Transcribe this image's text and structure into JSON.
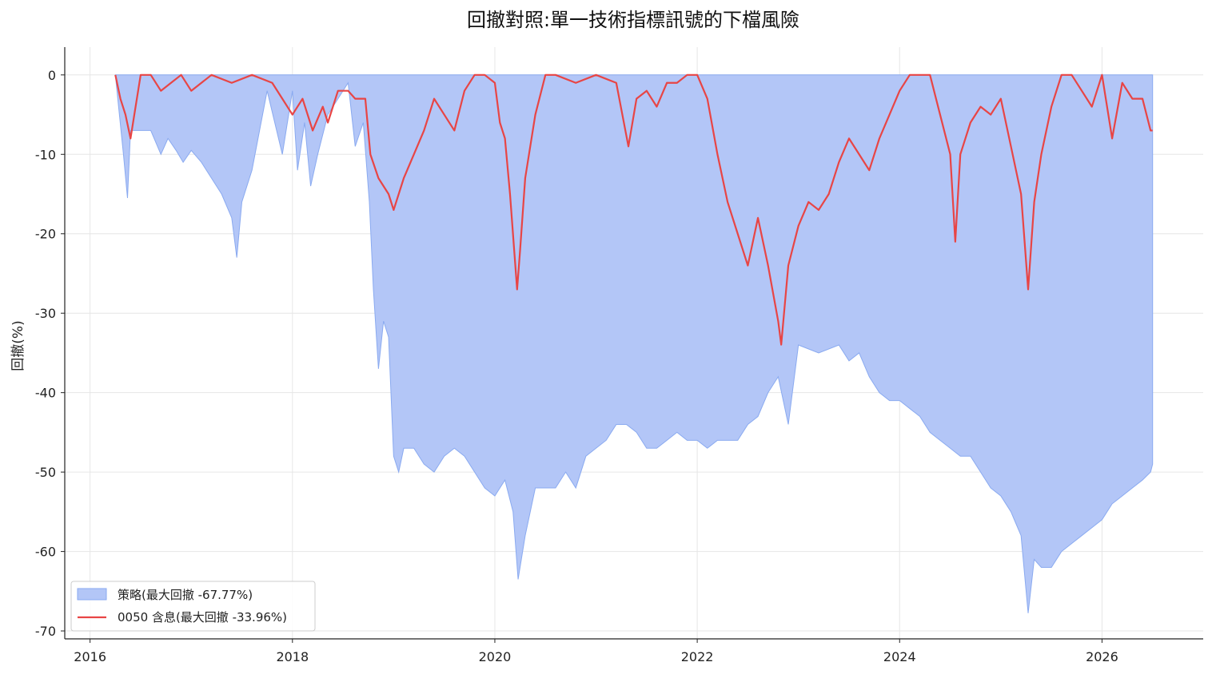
{
  "chart_data": {
    "type": "area",
    "title": "回撤對照:單一技術指標訊號的下檔風險",
    "xlabel": "",
    "ylabel": "回撤(%)",
    "xlim": [
      2015.75,
      2027.0
    ],
    "ylim": [
      -71,
      3.5
    ],
    "x_ticks": [
      2016,
      2018,
      2020,
      2022,
      2024,
      2026
    ],
    "x_tick_labels": [
      "2016",
      "2018",
      "2020",
      "2022",
      "2024",
      "2026"
    ],
    "y_ticks": [
      0,
      -10,
      -20,
      -30,
      -40,
      -50,
      -60,
      -70
    ],
    "y_tick_labels": [
      "0",
      "-10",
      "-20",
      "-30",
      "-40",
      "-50",
      "-60",
      "-70"
    ],
    "grid": true,
    "legend_position": "lower-left",
    "colors": {
      "strategy_fill": "#b3c6f7",
      "strategy_edge": "#8aaaf0",
      "benchmark": "#e84545"
    },
    "series": [
      {
        "name": "策略(最大回撤 -67.77%)",
        "kind": "area",
        "x": [
          2016.25,
          2016.29,
          2016.33,
          2016.37,
          2016.4,
          2016.5,
          2016.6,
          2016.7,
          2016.77,
          2016.85,
          2016.92,
          2017.0,
          2017.1,
          2017.2,
          2017.3,
          2017.4,
          2017.45,
          2017.5,
          2017.6,
          2017.75,
          2017.9,
          2018.0,
          2018.05,
          2018.12,
          2018.18,
          2018.25,
          2018.35,
          2018.45,
          2018.55,
          2018.62,
          2018.7,
          2018.76,
          2018.8,
          2018.85,
          2018.9,
          2018.95,
          2019.0,
          2019.05,
          2019.1,
          2019.2,
          2019.3,
          2019.4,
          2019.5,
          2019.6,
          2019.7,
          2019.8,
          2019.9,
          2020.0,
          2020.1,
          2020.18,
          2020.23,
          2020.3,
          2020.4,
          2020.5,
          2020.6,
          2020.7,
          2020.8,
          2020.9,
          2021.0,
          2021.1,
          2021.2,
          2021.3,
          2021.4,
          2021.5,
          2021.6,
          2021.7,
          2021.8,
          2021.9,
          2022.0,
          2022.1,
          2022.2,
          2022.3,
          2022.4,
          2022.5,
          2022.6,
          2022.7,
          2022.8,
          2022.9,
          2023.0,
          2023.2,
          2023.4,
          2023.5,
          2023.6,
          2023.7,
          2023.8,
          2023.9,
          2024.0,
          2024.1,
          2024.2,
          2024.3,
          2024.4,
          2024.5,
          2024.6,
          2024.7,
          2024.8,
          2024.9,
          2025.0,
          2025.1,
          2025.2,
          2025.27,
          2025.33,
          2025.4,
          2025.5,
          2025.6,
          2025.7,
          2025.8,
          2025.9,
          2026.0,
          2026.1,
          2026.2,
          2026.3,
          2026.4,
          2026.48,
          2026.5
        ],
        "y": [
          0,
          -5,
          -10,
          -15.5,
          -7,
          -7,
          -7,
          -10,
          -8,
          -9.5,
          -11,
          -9.5,
          -11,
          -13,
          -15,
          -18,
          -23,
          -16,
          -12,
          -2,
          -10,
          -2,
          -12,
          -6,
          -14,
          -10,
          -5,
          -3,
          -1,
          -9,
          -6,
          -16,
          -27,
          -37,
          -31,
          -33,
          -48,
          -50,
          -47,
          -47,
          -49,
          -50,
          -48,
          -47,
          -48,
          -50,
          -52,
          -53,
          -51,
          -55,
          -63.5,
          -58,
          -52,
          -52,
          -52,
          -50,
          -52,
          -48,
          -47,
          -46,
          -44,
          -44,
          -45,
          -47,
          -47,
          -46,
          -45,
          -46,
          -46,
          -47,
          -46,
          -46,
          -46,
          -44,
          -43,
          -40,
          -38,
          -44,
          -34,
          -35,
          -34,
          -36,
          -35,
          -38,
          -40,
          -41,
          -41,
          -42,
          -43,
          -45,
          -46,
          -47,
          -48,
          -48,
          -50,
          -52,
          -53,
          -55,
          -58,
          -67.77,
          -61,
          -62,
          -62,
          -60,
          -59,
          -58,
          -57,
          -56,
          -54,
          -53,
          -52,
          -51,
          -50,
          -49
        ]
      },
      {
        "name": "0050 含息(最大回撤 -33.96%)",
        "kind": "line",
        "x": [
          2016.25,
          2016.3,
          2016.35,
          2016.4,
          2016.45,
          2016.5,
          2016.6,
          2016.7,
          2016.8,
          2016.9,
          2017.0,
          2017.2,
          2017.4,
          2017.6,
          2017.8,
          2017.9,
          2018.0,
          2018.1,
          2018.2,
          2018.3,
          2018.35,
          2018.45,
          2018.55,
          2018.62,
          2018.72,
          2018.77,
          2018.85,
          2018.95,
          2019.0,
          2019.1,
          2019.2,
          2019.3,
          2019.4,
          2019.5,
          2019.6,
          2019.7,
          2019.8,
          2019.9,
          2020.0,
          2020.05,
          2020.1,
          2020.15,
          2020.22,
          2020.25,
          2020.3,
          2020.4,
          2020.5,
          2020.6,
          2020.8,
          2021.0,
          2021.2,
          2021.32,
          2021.4,
          2021.5,
          2021.6,
          2021.7,
          2021.8,
          2021.9,
          2022.0,
          2022.1,
          2022.2,
          2022.3,
          2022.4,
          2022.5,
          2022.6,
          2022.7,
          2022.8,
          2022.83,
          2022.9,
          2023.0,
          2023.1,
          2023.2,
          2023.3,
          2023.4,
          2023.5,
          2023.6,
          2023.7,
          2023.8,
          2023.9,
          2024.0,
          2024.1,
          2024.2,
          2024.3,
          2024.4,
          2024.5,
          2024.55,
          2024.6,
          2024.7,
          2024.8,
          2024.9,
          2025.0,
          2025.1,
          2025.2,
          2025.27,
          2025.33,
          2025.4,
          2025.5,
          2025.6,
          2025.7,
          2025.8,
          2025.9,
          2026.0,
          2026.1,
          2026.2,
          2026.3,
          2026.4,
          2026.48,
          2026.5
        ],
        "y": [
          0,
          -3,
          -5,
          -8,
          -4,
          0,
          0,
          -2,
          -1,
          0,
          -2,
          0,
          -1,
          0,
          -1,
          -3,
          -5,
          -3,
          -7,
          -4,
          -6,
          -2,
          -2,
          -3,
          -3,
          -10,
          -13,
          -15,
          -17,
          -13,
          -10,
          -7,
          -3,
          -5,
          -7,
          -2,
          0,
          0,
          -1,
          -6,
          -8,
          -15,
          -27,
          -22,
          -13,
          -5,
          0,
          0,
          -1,
          0,
          -1,
          -9,
          -3,
          -2,
          -4,
          -1,
          -1,
          0,
          0,
          -3,
          -10,
          -16,
          -20,
          -24,
          -18,
          -24,
          -31,
          -33.96,
          -24,
          -19,
          -16,
          -17,
          -15,
          -11,
          -8,
          -10,
          -12,
          -8,
          -5,
          -2,
          0,
          0,
          0,
          -5,
          -10,
          -21,
          -10,
          -6,
          -4,
          -5,
          -3,
          -9,
          -15,
          -27,
          -16,
          -10,
          -4,
          0,
          0,
          -2,
          -4,
          0,
          -8,
          -1,
          -3,
          -3,
          -7,
          -7
        ]
      }
    ]
  }
}
